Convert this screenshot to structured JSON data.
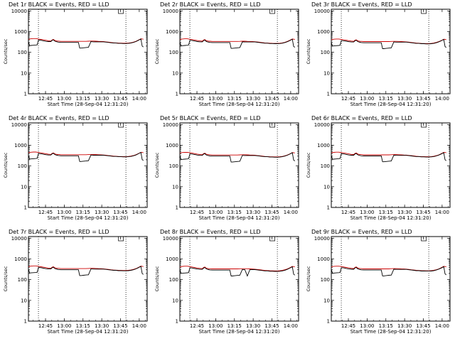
{
  "chart_data": {
    "type": "line",
    "shared": {
      "xlabel": "Start Time (28-Sep-04 12:31:20)",
      "ylabel": "Counts/sec",
      "x_ticks": [
        "12:45",
        "13:00",
        "13:15",
        "13:30",
        "13:45",
        "14:00"
      ],
      "x_tick_minutes": [
        13.67,
        28.67,
        43.67,
        58.67,
        73.67,
        88.67
      ],
      "xlim_minutes": [
        0,
        95
      ],
      "y_scale": "log",
      "ylim": [
        1,
        12000
      ],
      "y_ticks": [
        1,
        10,
        100,
        1000,
        10000
      ],
      "y_tick_labels": [
        "1",
        "10",
        "100",
        "1000",
        "10000"
      ],
      "vertical_dotted_lines_minutes": [
        8,
        78
      ],
      "marker_minutes": 72,
      "series_colors": {
        "events": "#000000",
        "lld": "#cc0000"
      },
      "x_minutes": [
        0,
        1,
        2,
        4,
        6,
        7,
        8,
        10,
        12,
        14,
        16,
        18,
        19,
        20,
        21,
        22,
        23,
        24,
        26,
        28,
        30,
        32,
        34,
        36,
        38,
        40,
        41,
        42,
        44,
        46,
        48,
        50,
        52,
        54,
        56,
        58,
        60,
        62,
        64,
        66,
        68,
        70,
        72,
        74,
        76,
        78,
        80,
        82,
        84,
        86,
        88,
        90,
        91,
        92
      ]
    },
    "panels": [
      {
        "title": "Det 1r BLACK = Events, RED = LLD",
        "events": [
          320,
          210,
          215,
          220,
          225,
          230,
          390,
          380,
          360,
          340,
          330,
          330,
          380,
          400,
          350,
          330,
          320,
          310,
          300,
          300,
          300,
          300,
          300,
          300,
          300,
          300,
          160,
          160,
          165,
          170,
          175,
          330,
          320,
          320,
          320,
          320,
          320,
          310,
          300,
          290,
          280,
          280,
          270,
          270,
          265,
          265,
          270,
          280,
          300,
          330,
          380,
          440,
          200,
          180
        ],
        "lld": [
          420,
          440,
          450,
          460,
          460,
          450,
          440,
          420,
          400,
          380,
          360,
          350,
          400,
          420,
          380,
          360,
          350,
          350,
          340,
          340,
          340,
          340,
          340,
          340,
          340,
          340,
          340,
          340,
          340,
          340,
          345,
          350,
          350,
          345,
          340,
          335,
          330,
          320,
          310,
          300,
          290,
          285,
          280,
          278,
          275,
          275,
          280,
          290,
          310,
          340,
          390,
          450,
          440,
          430
        ]
      },
      {
        "title": "Det 2r BLACK = Events, RED = LLD",
        "events": [
          300,
          205,
          210,
          215,
          220,
          225,
          380,
          370,
          350,
          330,
          320,
          320,
          370,
          390,
          340,
          320,
          310,
          300,
          295,
          295,
          295,
          295,
          295,
          295,
          295,
          295,
          155,
          155,
          160,
          165,
          170,
          320,
          315,
          315,
          315,
          315,
          315,
          305,
          295,
          285,
          275,
          275,
          265,
          265,
          260,
          260,
          265,
          275,
          295,
          325,
          370,
          430,
          195,
          175
        ],
        "lld": [
          410,
          430,
          440,
          450,
          450,
          440,
          430,
          410,
          390,
          370,
          355,
          345,
          395,
          410,
          370,
          355,
          345,
          345,
          335,
          335,
          335,
          335,
          335,
          335,
          335,
          335,
          335,
          335,
          335,
          335,
          340,
          345,
          345,
          340,
          335,
          330,
          325,
          315,
          305,
          295,
          285,
          280,
          275,
          272,
          270,
          270,
          275,
          285,
          305,
          335,
          380,
          440,
          430,
          420
        ]
      },
      {
        "title": "Det 3r BLACK = Events, RED = LLD",
        "events": [
          290,
          200,
          205,
          210,
          215,
          220,
          370,
          360,
          345,
          325,
          315,
          315,
          365,
          380,
          335,
          315,
          305,
          295,
          290,
          290,
          290,
          290,
          290,
          290,
          290,
          290,
          150,
          150,
          155,
          160,
          165,
          315,
          310,
          310,
          310,
          310,
          310,
          300,
          290,
          280,
          270,
          270,
          260,
          260,
          255,
          255,
          260,
          270,
          290,
          320,
          360,
          420,
          190,
          170
        ],
        "lld": [
          400,
          420,
          430,
          440,
          440,
          430,
          420,
          400,
          385,
          365,
          350,
          340,
          390,
          400,
          365,
          350,
          340,
          340,
          330,
          330,
          330,
          330,
          330,
          330,
          330,
          330,
          330,
          330,
          330,
          330,
          335,
          340,
          340,
          335,
          330,
          325,
          320,
          310,
          300,
          290,
          280,
          275,
          270,
          268,
          265,
          265,
          270,
          280,
          300,
          330,
          370,
          430,
          420,
          410
        ]
      },
      {
        "title": "Det 4r BLACK = Events, RED = LLD",
        "events": [
          330,
          215,
          220,
          225,
          230,
          235,
          400,
          390,
          370,
          350,
          340,
          340,
          390,
          410,
          360,
          340,
          330,
          320,
          310,
          310,
          310,
          310,
          310,
          310,
          310,
          310,
          165,
          165,
          170,
          175,
          180,
          340,
          330,
          330,
          330,
          330,
          330,
          320,
          310,
          300,
          290,
          290,
          280,
          280,
          275,
          275,
          280,
          290,
          310,
          340,
          390,
          450,
          205,
          185
        ],
        "lld": [
          430,
          450,
          460,
          470,
          470,
          460,
          450,
          430,
          410,
          390,
          370,
          360,
          410,
          430,
          390,
          370,
          360,
          360,
          350,
          350,
          350,
          350,
          350,
          350,
          350,
          350,
          350,
          350,
          350,
          350,
          355,
          360,
          360,
          355,
          350,
          345,
          340,
          330,
          320,
          310,
          300,
          295,
          290,
          288,
          285,
          285,
          290,
          300,
          320,
          350,
          400,
          460,
          450,
          440
        ]
      },
      {
        "title": "Det 5r BLACK = Events, RED = LLD",
        "events": [
          310,
          205,
          210,
          215,
          220,
          225,
          385,
          375,
          355,
          335,
          325,
          325,
          375,
          395,
          345,
          325,
          315,
          305,
          300,
          300,
          300,
          300,
          300,
          300,
          300,
          300,
          155,
          155,
          160,
          165,
          170,
          325,
          320,
          320,
          320,
          320,
          320,
          310,
          300,
          290,
          280,
          280,
          270,
          270,
          265,
          265,
          270,
          280,
          300,
          330,
          375,
          435,
          195,
          175
        ],
        "lld": [
          415,
          435,
          445,
          455,
          455,
          445,
          435,
          415,
          395,
          375,
          360,
          350,
          400,
          415,
          375,
          360,
          350,
          350,
          340,
          340,
          340,
          340,
          340,
          340,
          340,
          340,
          340,
          340,
          340,
          340,
          345,
          350,
          350,
          345,
          340,
          335,
          330,
          320,
          310,
          300,
          290,
          285,
          280,
          278,
          275,
          275,
          280,
          290,
          310,
          340,
          385,
          445,
          435,
          425
        ]
      },
      {
        "title": "Det 6r BLACK = Events, RED = LLD",
        "events": [
          320,
          210,
          215,
          220,
          225,
          230,
          390,
          380,
          360,
          340,
          330,
          330,
          380,
          400,
          350,
          330,
          320,
          310,
          305,
          305,
          305,
          305,
          305,
          305,
          305,
          305,
          160,
          160,
          165,
          170,
          175,
          330,
          325,
          325,
          325,
          325,
          325,
          315,
          305,
          295,
          285,
          285,
          275,
          275,
          270,
          270,
          275,
          285,
          305,
          335,
          380,
          440,
          200,
          180
        ],
        "lld": [
          425,
          445,
          455,
          465,
          465,
          455,
          445,
          425,
          405,
          385,
          365,
          355,
          405,
          425,
          385,
          365,
          355,
          355,
          345,
          345,
          345,
          345,
          345,
          345,
          345,
          345,
          345,
          345,
          345,
          345,
          350,
          355,
          355,
          350,
          345,
          340,
          335,
          325,
          315,
          305,
          295,
          290,
          285,
          283,
          280,
          280,
          285,
          295,
          315,
          345,
          395,
          455,
          445,
          435
        ]
      },
      {
        "title": "Det 7r BLACK = Events, RED = LLD",
        "events": [
          315,
          208,
          212,
          218,
          222,
          228,
          388,
          378,
          358,
          338,
          328,
          328,
          378,
          398,
          348,
          328,
          318,
          308,
          302,
          302,
          302,
          302,
          302,
          302,
          302,
          302,
          158,
          158,
          162,
          168,
          172,
          328,
          322,
          322,
          322,
          322,
          322,
          312,
          302,
          292,
          282,
          282,
          272,
          272,
          268,
          268,
          272,
          282,
          302,
          332,
          378,
          438,
          198,
          178
        ],
        "lld": [
          420,
          440,
          450,
          460,
          460,
          450,
          440,
          420,
          400,
          380,
          362,
          352,
          402,
          420,
          380,
          362,
          352,
          352,
          342,
          342,
          342,
          342,
          342,
          342,
          342,
          342,
          342,
          342,
          342,
          342,
          348,
          352,
          352,
          348,
          342,
          338,
          332,
          322,
          312,
          302,
          292,
          288,
          282,
          280,
          278,
          278,
          282,
          292,
          312,
          342,
          390,
          450,
          440,
          430
        ]
      },
      {
        "title": "Det 8r BLACK = Events, RED = LLD",
        "events": [
          300,
          200,
          205,
          210,
          215,
          220,
          375,
          365,
          345,
          325,
          315,
          315,
          365,
          385,
          335,
          315,
          305,
          295,
          290,
          290,
          290,
          290,
          290,
          290,
          290,
          290,
          150,
          150,
          155,
          160,
          165,
          310,
          305,
          150,
          300,
          305,
          305,
          295,
          285,
          275,
          265,
          265,
          255,
          255,
          250,
          250,
          255,
          265,
          285,
          315,
          360,
          420,
          185,
          165
        ],
        "lld": [
          405,
          425,
          435,
          445,
          445,
          435,
          425,
          405,
          385,
          365,
          350,
          340,
          390,
          405,
          365,
          350,
          340,
          340,
          330,
          330,
          330,
          330,
          330,
          330,
          330,
          330,
          330,
          330,
          330,
          330,
          335,
          340,
          340,
          335,
          330,
          325,
          320,
          310,
          300,
          290,
          280,
          275,
          270,
          268,
          265,
          265,
          270,
          280,
          300,
          330,
          375,
          435,
          425,
          415
        ]
      },
      {
        "title": "Det 9r BLACK = Events, RED = LLD",
        "events": [
          305,
          202,
          207,
          212,
          217,
          222,
          378,
          368,
          348,
          328,
          318,
          318,
          368,
          388,
          338,
          318,
          308,
          298,
          292,
          292,
          292,
          292,
          292,
          292,
          292,
          292,
          152,
          152,
          157,
          162,
          167,
          318,
          312,
          312,
          312,
          312,
          312,
          302,
          292,
          282,
          272,
          272,
          262,
          262,
          258,
          258,
          262,
          272,
          292,
          322,
          365,
          425,
          190,
          170
        ],
        "lld": [
          408,
          428,
          438,
          448,
          448,
          438,
          428,
          408,
          388,
          368,
          352,
          342,
          392,
          408,
          368,
          352,
          342,
          342,
          332,
          332,
          332,
          332,
          332,
          332,
          332,
          332,
          332,
          332,
          332,
          332,
          338,
          342,
          342,
          338,
          332,
          328,
          322,
          312,
          302,
          292,
          282,
          278,
          272,
          270,
          268,
          268,
          272,
          282,
          302,
          332,
          378,
          438,
          428,
          418
        ]
      }
    ]
  }
}
